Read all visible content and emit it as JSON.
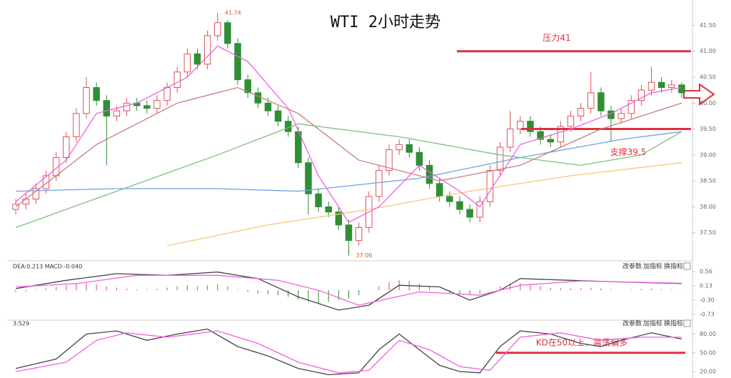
{
  "chart_data": [
    {
      "type": "candlestick",
      "title": "WTI 2小时走势",
      "up_color": "#e0505a",
      "down_color": "#2e8f34",
      "open": [
        37.95,
        38.05,
        38.15,
        38.35,
        38.6,
        38.95,
        39.35,
        39.8,
        40.3,
        40.05,
        39.75,
        39.85,
        40.0,
        39.95,
        39.9,
        40.05,
        40.3,
        40.6,
        40.95,
        40.75,
        41.3,
        41.55,
        41.15,
        40.45,
        40.2,
        40.0,
        39.85,
        39.65,
        39.45,
        38.85,
        38.25,
        38.0,
        37.9,
        37.65,
        37.35,
        37.6,
        38.2,
        38.7,
        39.1,
        39.2,
        39.05,
        38.8,
        38.45,
        38.2,
        38.1,
        37.95,
        37.8,
        38.1,
        38.7,
        39.15,
        39.5,
        39.65,
        39.45,
        39.3,
        39.25,
        39.55,
        39.75,
        39.9,
        40.2,
        39.85,
        39.7,
        39.8,
        40.05,
        40.25,
        40.4,
        40.3,
        40.35
      ],
      "high": [
        38.15,
        38.25,
        38.45,
        38.7,
        39.05,
        39.45,
        39.9,
        40.5,
        40.4,
        40.15,
        39.95,
        40.1,
        40.1,
        40.05,
        40.15,
        40.4,
        40.7,
        41.05,
        41.05,
        41.4,
        41.74,
        41.6,
        41.25,
        40.55,
        40.3,
        40.1,
        39.95,
        39.75,
        39.55,
        38.95,
        38.35,
        38.1,
        38.0,
        37.75,
        37.7,
        38.3,
        38.8,
        39.2,
        39.3,
        39.3,
        39.15,
        38.9,
        38.55,
        38.3,
        38.2,
        38.05,
        38.2,
        38.8,
        39.25,
        39.85,
        39.75,
        39.75,
        39.55,
        39.4,
        39.65,
        39.85,
        40.0,
        40.6,
        40.3,
        39.95,
        39.9,
        40.15,
        40.35,
        40.7,
        40.5,
        40.45,
        40.4
      ],
      "low": [
        37.85,
        37.95,
        38.05,
        38.25,
        38.5,
        38.85,
        39.25,
        39.7,
        39.95,
        38.8,
        39.65,
        39.75,
        39.85,
        39.8,
        39.8,
        39.95,
        40.2,
        40.5,
        40.65,
        40.65,
        41.2,
        41.05,
        40.35,
        40.1,
        39.9,
        39.75,
        39.55,
        39.35,
        38.75,
        37.85,
        37.9,
        37.8,
        37.55,
        37.06,
        37.25,
        37.5,
        38.1,
        38.6,
        39.0,
        38.95,
        38.7,
        38.35,
        38.1,
        38.0,
        37.85,
        37.7,
        37.7,
        38.0,
        38.6,
        39.05,
        39.4,
        39.35,
        39.2,
        39.15,
        39.15,
        39.45,
        39.65,
        39.8,
        39.75,
        39.25,
        39.6,
        39.7,
        39.95,
        40.15,
        40.2,
        40.2,
        40.1
      ],
      "close": [
        38.05,
        38.15,
        38.35,
        38.6,
        38.95,
        39.35,
        39.8,
        40.3,
        40.05,
        39.75,
        39.85,
        40.0,
        39.95,
        39.9,
        40.05,
        40.3,
        40.6,
        40.95,
        40.75,
        41.3,
        41.55,
        41.15,
        40.45,
        40.2,
        40.0,
        39.85,
        39.65,
        39.45,
        38.85,
        38.25,
        38.0,
        37.9,
        37.65,
        37.35,
        37.6,
        38.2,
        38.7,
        39.1,
        39.2,
        39.05,
        38.8,
        38.45,
        38.2,
        38.1,
        37.95,
        37.8,
        38.1,
        38.7,
        39.15,
        39.5,
        39.65,
        39.45,
        39.3,
        39.25,
        39.55,
        39.75,
        39.9,
        40.2,
        39.85,
        39.7,
        39.8,
        40.05,
        40.25,
        40.4,
        40.3,
        40.35,
        40.2
      ],
      "lines": [
        {
          "color": "#6fa3e0",
          "x": [
            0,
            10,
            20,
            28,
            40,
            50,
            60,
            66
          ],
          "values": [
            38.3,
            38.35,
            38.35,
            38.3,
            38.55,
            38.95,
            39.3,
            39.45
          ]
        },
        {
          "color": "#7cc07a",
          "x": [
            0,
            10,
            20,
            28,
            38,
            48,
            56,
            62,
            66
          ],
          "values": [
            37.6,
            38.3,
            39.0,
            39.6,
            39.35,
            39.0,
            38.8,
            39.0,
            39.45
          ]
        },
        {
          "color": "#f5c77a",
          "x": [
            15,
            25,
            35,
            45,
            55,
            66
          ],
          "values": [
            37.25,
            37.65,
            37.95,
            38.3,
            38.6,
            38.85
          ]
        },
        {
          "color": "#c08078",
          "x": [
            0,
            8,
            16,
            22,
            28,
            34,
            42,
            50,
            58,
            66
          ],
          "values": [
            38.0,
            39.2,
            40.0,
            40.3,
            39.8,
            38.9,
            38.5,
            38.8,
            39.5,
            40.0
          ]
        },
        {
          "color": "#f060e0",
          "x": [
            0,
            5,
            8,
            12,
            17,
            20,
            23,
            27,
            30,
            33,
            36,
            40,
            44,
            46,
            50,
            55,
            59,
            63,
            66
          ],
          "values": [
            38.1,
            38.9,
            39.8,
            40.0,
            40.5,
            41.1,
            40.8,
            39.9,
            38.6,
            37.7,
            38.0,
            38.8,
            38.3,
            38.0,
            39.2,
            39.5,
            39.8,
            40.2,
            40.3
          ]
        }
      ],
      "resistance": {
        "label": "压力41",
        "value": 41
      },
      "support": {
        "label": "支撑39.5",
        "value": 39.5
      },
      "ylim": [
        37.0,
        41.85
      ],
      "yticks": [
        {
          "value": 37.5,
          "label": "37.50"
        },
        {
          "value": 38,
          "label": "38.00"
        },
        {
          "value": 38.5,
          "label": "38.50"
        },
        {
          "value": 39,
          "label": "39.00"
        },
        {
          "value": 39.5,
          "label": "39.50"
        },
        {
          "value": 40,
          "label": "40.00"
        },
        {
          "value": 40.5,
          "label": "40.50"
        },
        {
          "value": 41,
          "label": "41.00"
        },
        {
          "value": 41.5,
          "label": "41.50"
        }
      ]
    },
    {
      "type": "macd",
      "indicator_label": "DEA:0.213  MACD:-0.040",
      "buttons": [
        "改参数",
        "加指标",
        "换指标"
      ],
      "up_color": "#e06070",
      "down_color": "#4a9e4a",
      "histogram": [
        -0.05,
        -0.04,
        0.02,
        0.06,
        0.1,
        0.15,
        0.2,
        0.22,
        0.18,
        0.12,
        0.08,
        0.05,
        0.03,
        0.02,
        0.04,
        0.08,
        0.12,
        0.15,
        0.12,
        0.15,
        0.18,
        0.12,
        0.02,
        -0.05,
        -0.1,
        -0.12,
        -0.15,
        -0.2,
        -0.28,
        -0.35,
        -0.38,
        -0.35,
        -0.3,
        -0.25,
        -0.15,
        0.0,
        0.12,
        0.25,
        0.3,
        0.28,
        0.2,
        0.1,
        0.0,
        -0.08,
        -0.12,
        -0.15,
        -0.1,
        0.02,
        0.12,
        0.2,
        0.22,
        0.18,
        0.12,
        0.08,
        0.06,
        0.05,
        0.06,
        0.08,
        0.05,
        0.02,
        0.0,
        0.02,
        0.04,
        0.05,
        0.03,
        0.02,
        0.01
      ],
      "lines": [
        {
          "color": "#444444",
          "x": [
            0,
            5,
            10,
            15,
            20,
            24,
            28,
            32,
            35,
            38,
            42,
            45,
            48,
            50,
            55,
            60,
            66
          ],
          "values": [
            0.05,
            0.3,
            0.5,
            0.45,
            0.55,
            0.35,
            -0.2,
            -0.6,
            -0.45,
            0.15,
            0.1,
            -0.3,
            0.0,
            0.35,
            0.3,
            0.25,
            0.2
          ]
        },
        {
          "color": "#f060e0",
          "x": [
            0,
            6,
            12,
            20,
            26,
            30,
            34,
            40,
            46,
            50,
            56,
            66
          ],
          "values": [
            0.1,
            0.2,
            0.45,
            0.45,
            0.3,
            0.0,
            -0.45,
            -0.05,
            -0.15,
            0.15,
            0.28,
            0.21
          ]
        }
      ],
      "ylim": [
        -0.88,
        0.78
      ],
      "yticks": [
        0.56,
        0.13,
        {
          "value": -0.3,
          "label": "-0.30"
        },
        -0.73
      ]
    },
    {
      "type": "line",
      "indicator_label": "3:529",
      "buttons": [
        "改参数",
        "加指标",
        "换指标"
      ],
      "lines": [
        {
          "color": "#444444",
          "x": [
            0,
            4,
            7,
            10,
            13,
            16,
            19,
            22,
            25,
            28,
            31,
            34,
            36,
            38,
            40,
            42,
            44,
            46,
            48,
            50,
            53,
            56,
            58,
            60,
            63,
            66
          ],
          "values": [
            25,
            40,
            80,
            85,
            70,
            80,
            88,
            60,
            45,
            25,
            15,
            18,
            55,
            80,
            55,
            30,
            20,
            18,
            60,
            85,
            80,
            65,
            60,
            70,
            82,
            72
          ]
        },
        {
          "color": "#f060e0",
          "x": [
            0,
            5,
            8,
            11,
            15,
            20,
            24,
            28,
            32,
            35,
            38,
            41,
            44,
            47,
            50,
            54,
            58,
            62,
            66
          ],
          "values": [
            20,
            35,
            70,
            82,
            75,
            85,
            65,
            35,
            18,
            22,
            70,
            55,
            28,
            22,
            75,
            82,
            70,
            75,
            75
          ]
        }
      ],
      "annotation": {
        "label": "KD在50以上，震荡偏多",
        "value": 50
      },
      "ylim": [
        12,
        100
      ],
      "yticks": [
        {
          "value": 80,
          "label": "80.00"
        },
        {
          "value": 50,
          "label": "50.00"
        },
        {
          "value": 20,
          "label": "20.00"
        }
      ]
    }
  ]
}
